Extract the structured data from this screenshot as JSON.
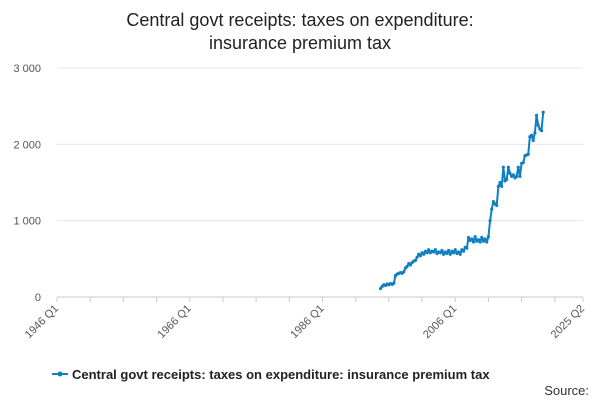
{
  "colors": {
    "series": "#0f7fbf",
    "grid": "#e6e6e6",
    "axis": "#cccccc"
  },
  "chart_data": {
    "type": "line",
    "title": "Central govt receipts: taxes on expenditure: insurance premium tax",
    "xlabel": "",
    "ylabel": "",
    "ylim": [
      0,
      3000
    ],
    "yticks": [
      {
        "value": 0,
        "label": "0"
      },
      {
        "value": 1000,
        "label": "1 000"
      },
      {
        "value": 2000,
        "label": "2 000"
      },
      {
        "value": 3000,
        "label": "3 000"
      }
    ],
    "xlim": [
      "1946 Q1",
      "2025 Q2"
    ],
    "xtick_labels": [
      "1946 Q1",
      "1966 Q1",
      "1986 Q1",
      "2006 Q1",
      "2025 Q2"
    ],
    "legend": "bottom",
    "grid": true,
    "series": [
      {
        "name": "Central govt receipts: taxes on expenditure: insurance premium tax",
        "points": [
          [
            "1994 Q4",
            110
          ],
          [
            "1995 Q1",
            140
          ],
          [
            "1995 Q2",
            160
          ],
          [
            "1995 Q3",
            150
          ],
          [
            "1995 Q4",
            170
          ],
          [
            "1996 Q1",
            160
          ],
          [
            "1996 Q2",
            175
          ],
          [
            "1996 Q3",
            165
          ],
          [
            "1996 Q4",
            180
          ],
          [
            "1997 Q1",
            280
          ],
          [
            "1997 Q2",
            300
          ],
          [
            "1997 Q3",
            310
          ],
          [
            "1997 Q4",
            320
          ],
          [
            "1998 Q1",
            310
          ],
          [
            "1998 Q2",
            330
          ],
          [
            "1998 Q3",
            380
          ],
          [
            "1998 Q4",
            400
          ],
          [
            "1999 Q1",
            440
          ],
          [
            "1999 Q2",
            420
          ],
          [
            "1999 Q3",
            450
          ],
          [
            "1999 Q4",
            470
          ],
          [
            "2000 Q1",
            480
          ],
          [
            "2000 Q2",
            520
          ],
          [
            "2000 Q3",
            560
          ],
          [
            "2000 Q4",
            540
          ],
          [
            "2001 Q1",
            580
          ],
          [
            "2001 Q2",
            560
          ],
          [
            "2001 Q3",
            600
          ],
          [
            "2001 Q4",
            580
          ],
          [
            "2002 Q1",
            620
          ],
          [
            "2002 Q2",
            580
          ],
          [
            "2002 Q3",
            600
          ],
          [
            "2002 Q4",
            590
          ],
          [
            "2003 Q1",
            620
          ],
          [
            "2003 Q2",
            570
          ],
          [
            "2003 Q3",
            590
          ],
          [
            "2003 Q4",
            580
          ],
          [
            "2004 Q1",
            610
          ],
          [
            "2004 Q2",
            560
          ],
          [
            "2004 Q3",
            590
          ],
          [
            "2004 Q4",
            570
          ],
          [
            "2005 Q1",
            610
          ],
          [
            "2005 Q2",
            560
          ],
          [
            "2005 Q3",
            600
          ],
          [
            "2005 Q4",
            580
          ],
          [
            "2006 Q1",
            620
          ],
          [
            "2006 Q2",
            570
          ],
          [
            "2006 Q3",
            590
          ],
          [
            "2006 Q4",
            560
          ],
          [
            "2007 Q1",
            620
          ],
          [
            "2007 Q2",
            600
          ],
          [
            "2007 Q3",
            650
          ],
          [
            "2007 Q4",
            640
          ],
          [
            "2008 Q1",
            780
          ],
          [
            "2008 Q2",
            740
          ],
          [
            "2008 Q3",
            760
          ],
          [
            "2008 Q4",
            720
          ],
          [
            "2009 Q1",
            790
          ],
          [
            "2009 Q2",
            730
          ],
          [
            "2009 Q3",
            750
          ],
          [
            "2009 Q4",
            720
          ],
          [
            "2010 Q1",
            780
          ],
          [
            "2010 Q2",
            730
          ],
          [
            "2010 Q3",
            760
          ],
          [
            "2010 Q4",
            720
          ],
          [
            "2011 Q1",
            790
          ],
          [
            "2011 Q2",
            1000
          ],
          [
            "2011 Q3",
            1150
          ],
          [
            "2011 Q4",
            1250
          ],
          [
            "2012 Q1",
            1220
          ],
          [
            "2012 Q2",
            1200
          ],
          [
            "2012 Q3",
            1450
          ],
          [
            "2012 Q4",
            1500
          ],
          [
            "2013 Q1",
            1450
          ],
          [
            "2013 Q2",
            1700
          ],
          [
            "2013 Q3",
            1520
          ],
          [
            "2013 Q4",
            1540
          ],
          [
            "2014 Q1",
            1700
          ],
          [
            "2014 Q2",
            1620
          ],
          [
            "2014 Q3",
            1580
          ],
          [
            "2014 Q4",
            1600
          ],
          [
            "2015 Q1",
            1560
          ],
          [
            "2015 Q2",
            1580
          ],
          [
            "2015 Q3",
            1700
          ],
          [
            "2015 Q4",
            1580
          ],
          [
            "2016 Q1",
            1750
          ],
          [
            "2016 Q2",
            1760
          ],
          [
            "2016 Q3",
            1850
          ],
          [
            "2016 Q4",
            1860
          ],
          [
            "2017 Q1",
            1870
          ],
          [
            "2017 Q2",
            2100
          ],
          [
            "2017 Q3",
            2120
          ],
          [
            "2017 Q4",
            2050
          ],
          [
            "2018 Q1",
            2150
          ],
          [
            "2018 Q2",
            2380
          ],
          [
            "2018 Q3",
            2250
          ],
          [
            "2018 Q4",
            2200
          ],
          [
            "2019 Q1",
            2180
          ],
          [
            "2019 Q2",
            2420
          ]
        ]
      }
    ]
  },
  "source_label": "Source:"
}
